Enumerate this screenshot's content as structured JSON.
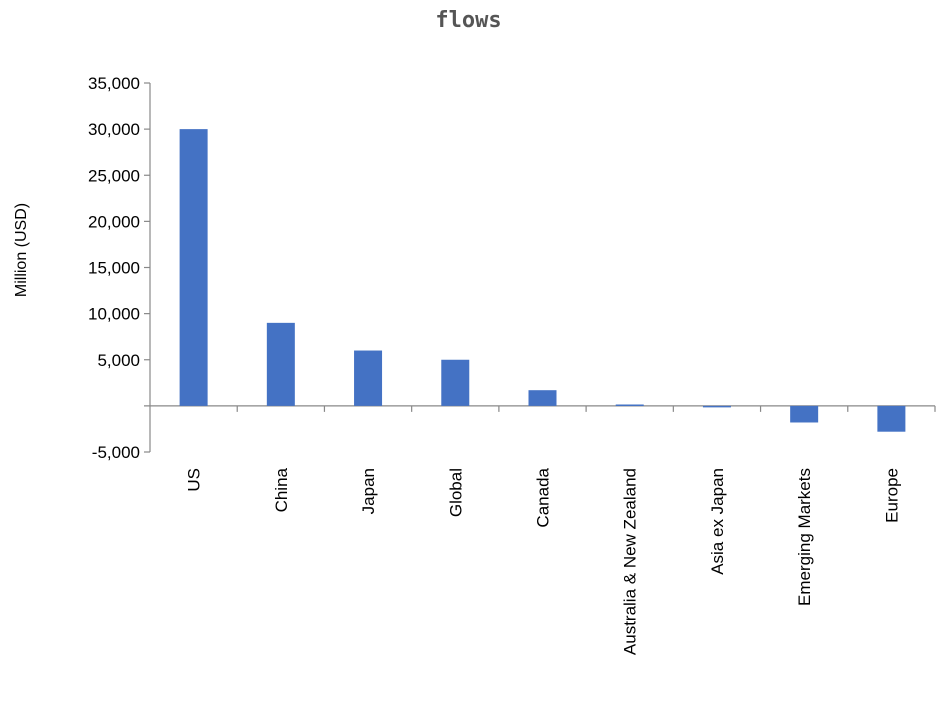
{
  "chart_data": {
    "type": "bar",
    "title": "flows",
    "xlabel": "",
    "ylabel": "Million (USD)",
    "ylim": [
      -5000,
      35000
    ],
    "yticks": [
      -5000,
      5000,
      10000,
      15000,
      20000,
      25000,
      30000,
      35000
    ],
    "ytick_labels": [
      "-5,000",
      "5,000",
      "10,000",
      "15,000",
      "20,000",
      "25,000",
      "30,000",
      "35,000"
    ],
    "negative_tick_color": "#ff0000",
    "categories": [
      "US",
      "China",
      "Japan",
      "Global",
      "Canada",
      "Australia & New Zealand",
      "Asia ex Japan",
      "Emerging Markets",
      "Europe"
    ],
    "values": [
      30000,
      9000,
      6000,
      5000,
      1700,
      150,
      -150,
      -1800,
      -2800
    ],
    "bar_color": "#4472c4",
    "grid": false,
    "legend": "none"
  }
}
